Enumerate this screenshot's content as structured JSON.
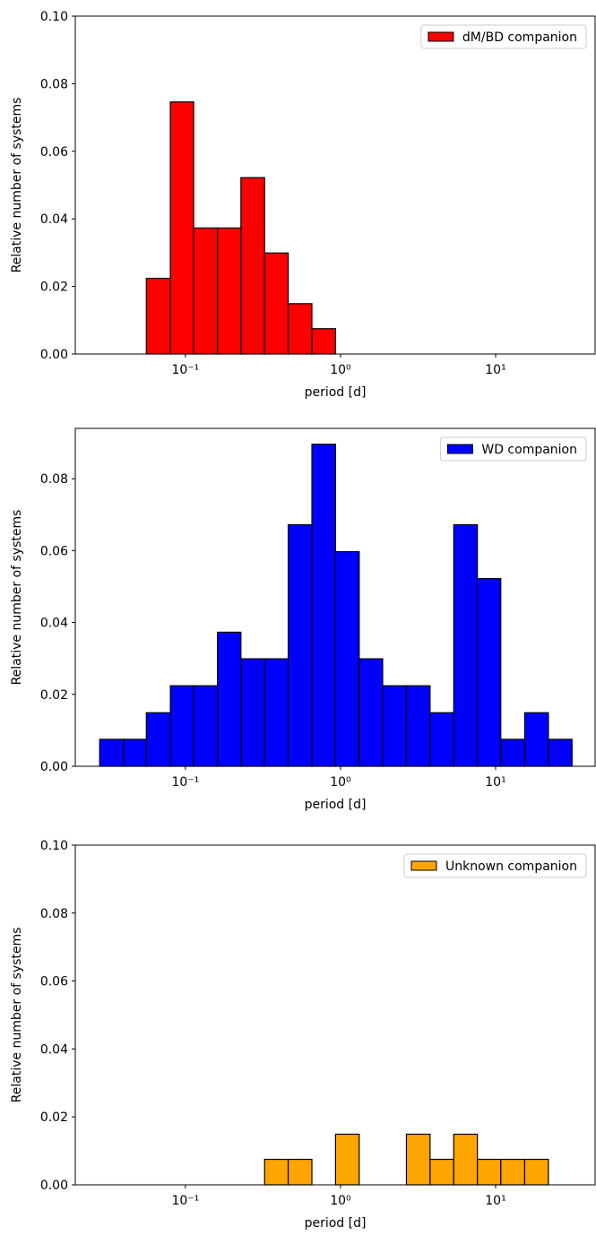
{
  "chart_data": [
    {
      "type": "histogram",
      "log_x": true,
      "legend": "upper right",
      "xlabel": "period [d]",
      "ylabel": "Relative number of systems",
      "bins": [
        0.028,
        0.04,
        0.056,
        0.08,
        0.113,
        0.161,
        0.228,
        0.324,
        0.46,
        0.654,
        0.929,
        1.32,
        1.87,
        2.66,
        3.78,
        5.37,
        7.63,
        10.8,
        15.4,
        21.9,
        31.1
      ],
      "series": [
        {
          "name": "dM/BD companion",
          "color": "#ff0000",
          "values": [
            0,
            0,
            0.0224,
            0.0746,
            0.0373,
            0.0373,
            0.0522,
            0.0299,
            0.0149,
            0.0075,
            0,
            0,
            0,
            0,
            0,
            0,
            0,
            0,
            0,
            0
          ]
        }
      ],
      "xlim": [
        0.0195,
        43.8
      ],
      "xticks": [
        {
          "value": 0.1,
          "label": "10⁻¹"
        },
        {
          "value": 1,
          "label": "10⁰"
        },
        {
          "value": 10,
          "label": "10¹"
        }
      ],
      "ylim": [
        0,
        0.1
      ],
      "yticks": [
        {
          "value": 0,
          "label": "0.00"
        },
        0.02,
        0.04,
        0.06,
        0.08,
        {
          "value": 0.1,
          "label": "0.10"
        }
      ]
    },
    {
      "type": "histogram",
      "log_x": true,
      "legend": "upper right",
      "xlabel": "period [d]",
      "ylabel": "Relative number of systems",
      "bins": [
        0.028,
        0.04,
        0.056,
        0.08,
        0.113,
        0.161,
        0.228,
        0.324,
        0.46,
        0.654,
        0.929,
        1.32,
        1.87,
        2.66,
        3.78,
        5.37,
        7.63,
        10.8,
        15.4,
        21.9,
        31.1
      ],
      "series": [
        {
          "name": "WD companion",
          "color": "#0000ff",
          "values": [
            0.0075,
            0.0075,
            0.0149,
            0.0224,
            0.0224,
            0.0373,
            0.0299,
            0.0299,
            0.0672,
            0.0896,
            0.0597,
            0.0299,
            0.0224,
            0.0224,
            0.0149,
            0.0672,
            0.0522,
            0.0075,
            0.0149,
            0.0075
          ]
        }
      ],
      "xlim": [
        0.0195,
        43.8
      ],
      "xticks": [
        {
          "value": 0.1,
          "label": "10⁻¹"
        },
        {
          "value": 1,
          "label": "10⁰"
        },
        {
          "value": 10,
          "label": "10¹"
        }
      ],
      "ylim": [
        0,
        0.094
      ],
      "yticks": [
        {
          "value": 0,
          "label": "0.00"
        },
        0.02,
        0.04,
        0.06,
        0.08
      ]
    },
    {
      "type": "histogram",
      "log_x": true,
      "legend": "upper right",
      "xlabel": "period [d]",
      "ylabel": "Relative number of systems",
      "bins": [
        0.028,
        0.04,
        0.056,
        0.08,
        0.113,
        0.161,
        0.228,
        0.324,
        0.46,
        0.654,
        0.929,
        1.32,
        1.87,
        2.66,
        3.78,
        5.37,
        7.63,
        10.8,
        15.4,
        21.9,
        31.1
      ],
      "series": [
        {
          "name": "Unknown companion",
          "color": "#ffa500",
          "values": [
            0,
            0,
            0,
            0,
            0,
            0,
            0,
            0.0075,
            0.0075,
            0,
            0.0149,
            0,
            0,
            0.0149,
            0.0075,
            0.0149,
            0.0075,
            0.0075,
            0.0075,
            0
          ]
        }
      ],
      "xlim": [
        0.0195,
        43.8
      ],
      "xticks": [
        {
          "value": 0.1,
          "label": "10⁻¹"
        },
        {
          "value": 1,
          "label": "10⁰"
        },
        {
          "value": 10,
          "label": "10¹"
        }
      ],
      "ylim": [
        0,
        0.1
      ],
      "yticks": [
        {
          "value": 0,
          "label": "0.00"
        },
        0.02,
        0.04,
        0.06,
        0.08,
        {
          "value": 0.1,
          "label": "0.10"
        }
      ]
    }
  ]
}
